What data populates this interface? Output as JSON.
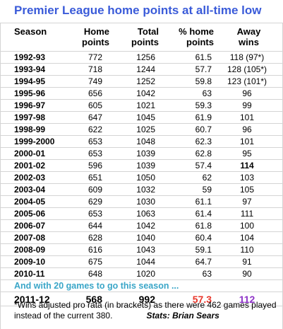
{
  "title": "Premier League home points at all-time low",
  "headers": {
    "season": "Season",
    "home_points": [
      "Home",
      "points"
    ],
    "total_points": [
      "Total",
      "points"
    ],
    "pct_home": [
      "% home",
      "points"
    ],
    "away_wins": [
      "Away",
      "wins"
    ]
  },
  "rows": [
    {
      "season": "1992-93",
      "home": "772",
      "total": "1256",
      "pct": "61.5",
      "away": "118 (97*)"
    },
    {
      "season": "1993-94",
      "home": "718",
      "total": "1244",
      "pct": "57.7",
      "away": "128 (105*)"
    },
    {
      "season": "1994-95",
      "home": "749",
      "total": "1252",
      "pct": "59.8",
      "away": "123 (101*)"
    },
    {
      "season": "1995-96",
      "home": "656",
      "total": "1042",
      "pct": "63",
      "away": "96"
    },
    {
      "season": "1996-97",
      "home": "605",
      "total": "1021",
      "pct": "59.3",
      "away": "99"
    },
    {
      "season": "1997-98",
      "home": "647",
      "total": "1045",
      "pct": "61.9",
      "away": "101"
    },
    {
      "season": "1998-99",
      "home": "622",
      "total": "1025",
      "pct": "60.7",
      "away": "96"
    },
    {
      "season": "1999-2000",
      "home": "653",
      "total": "1048",
      "pct": "62.3",
      "away": "101"
    },
    {
      "season": "2000-01",
      "home": "653",
      "total": "1039",
      "pct": "62.8",
      "away": "95"
    },
    {
      "season": "2001-02",
      "home": "596",
      "total": "1039",
      "pct": "57.4",
      "away": "114"
    },
    {
      "season": "2002-03",
      "home": "651",
      "total": "1050",
      "pct": "62",
      "away": "103"
    },
    {
      "season": "2003-04",
      "home": "609",
      "total": "1032",
      "pct": "59",
      "away": "105"
    },
    {
      "season": "2004-05",
      "home": "629",
      "total": "1030",
      "pct": "61.1",
      "away": "97"
    },
    {
      "season": "2005-06",
      "home": "653",
      "total": "1063",
      "pct": "61.4",
      "away": "111"
    },
    {
      "season": "2006-07",
      "home": "644",
      "total": "1042",
      "pct": "61.8",
      "away": "100"
    },
    {
      "season": "2007-08",
      "home": "628",
      "total": "1040",
      "pct": "60.4",
      "away": "104"
    },
    {
      "season": "2008-09",
      "home": "616",
      "total": "1043",
      "pct": "59.1",
      "away": "110"
    },
    {
      "season": "2009-10",
      "home": "675",
      "total": "1044",
      "pct": "64.7",
      "away": "91"
    },
    {
      "season": "2010-11",
      "home": "648",
      "total": "1020",
      "pct": "63",
      "away": "90"
    }
  ],
  "note": "And with 20 games to go this season ...",
  "current": {
    "season": "2011-12",
    "home": "568",
    "total": "992",
    "pct": "57.3",
    "away": "112"
  },
  "footnote": "*Wins adjusted pro rata (in brackets) as there were 462 games played instead of the current 380.",
  "stats_credit": "Stats: Brian Sears",
  "colors": {
    "title": "#3a5bd9",
    "note": "#3aa6c8",
    "current_pct": "#e8362a",
    "current_away": "#8e33c8",
    "gridline": "#d4d4d4"
  }
}
